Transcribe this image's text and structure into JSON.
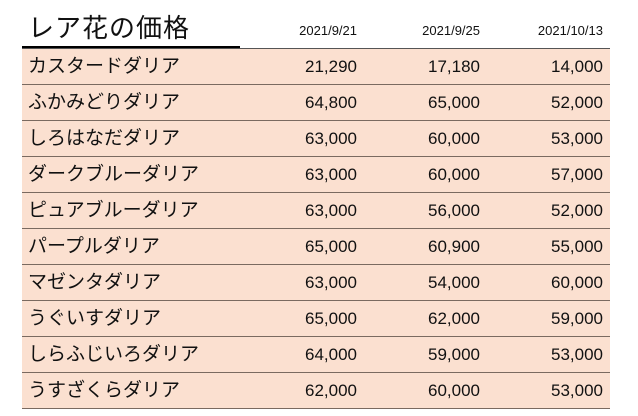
{
  "title": "レア花の価格",
  "dates": [
    "2021/9/21",
    "2021/9/25",
    "2021/10/13"
  ],
  "rows": [
    {
      "name": "カスタードダリア",
      "values": [
        "21,290",
        "17,180",
        "14,000"
      ]
    },
    {
      "name": "ふかみどりダリア",
      "values": [
        "64,800",
        "65,000",
        "52,000"
      ]
    },
    {
      "name": "しろはなだダリア",
      "values": [
        "63,000",
        "60,000",
        "53,000"
      ]
    },
    {
      "name": "ダークブルーダリア",
      "values": [
        "63,000",
        "60,000",
        "57,000"
      ]
    },
    {
      "name": "ピュアブルーダリア",
      "values": [
        "63,000",
        "56,000",
        "52,000"
      ]
    },
    {
      "name": "パープルダリア",
      "values": [
        "65,000",
        "60,900",
        "55,000"
      ]
    },
    {
      "name": "マゼンタダリア",
      "values": [
        "63,000",
        "54,000",
        "60,000"
      ]
    },
    {
      "name": "うぐいすダリア",
      "values": [
        "65,000",
        "62,000",
        "59,000"
      ]
    },
    {
      "name": "しらふじいろダリア",
      "values": [
        "64,000",
        "59,000",
        "53,000"
      ]
    },
    {
      "name": "うすざくらダリア",
      "values": [
        "62,000",
        "60,000",
        "53,000"
      ]
    }
  ],
  "colors": {
    "row_background": "#fbe0d0",
    "row_border": "#7a6a60"
  }
}
